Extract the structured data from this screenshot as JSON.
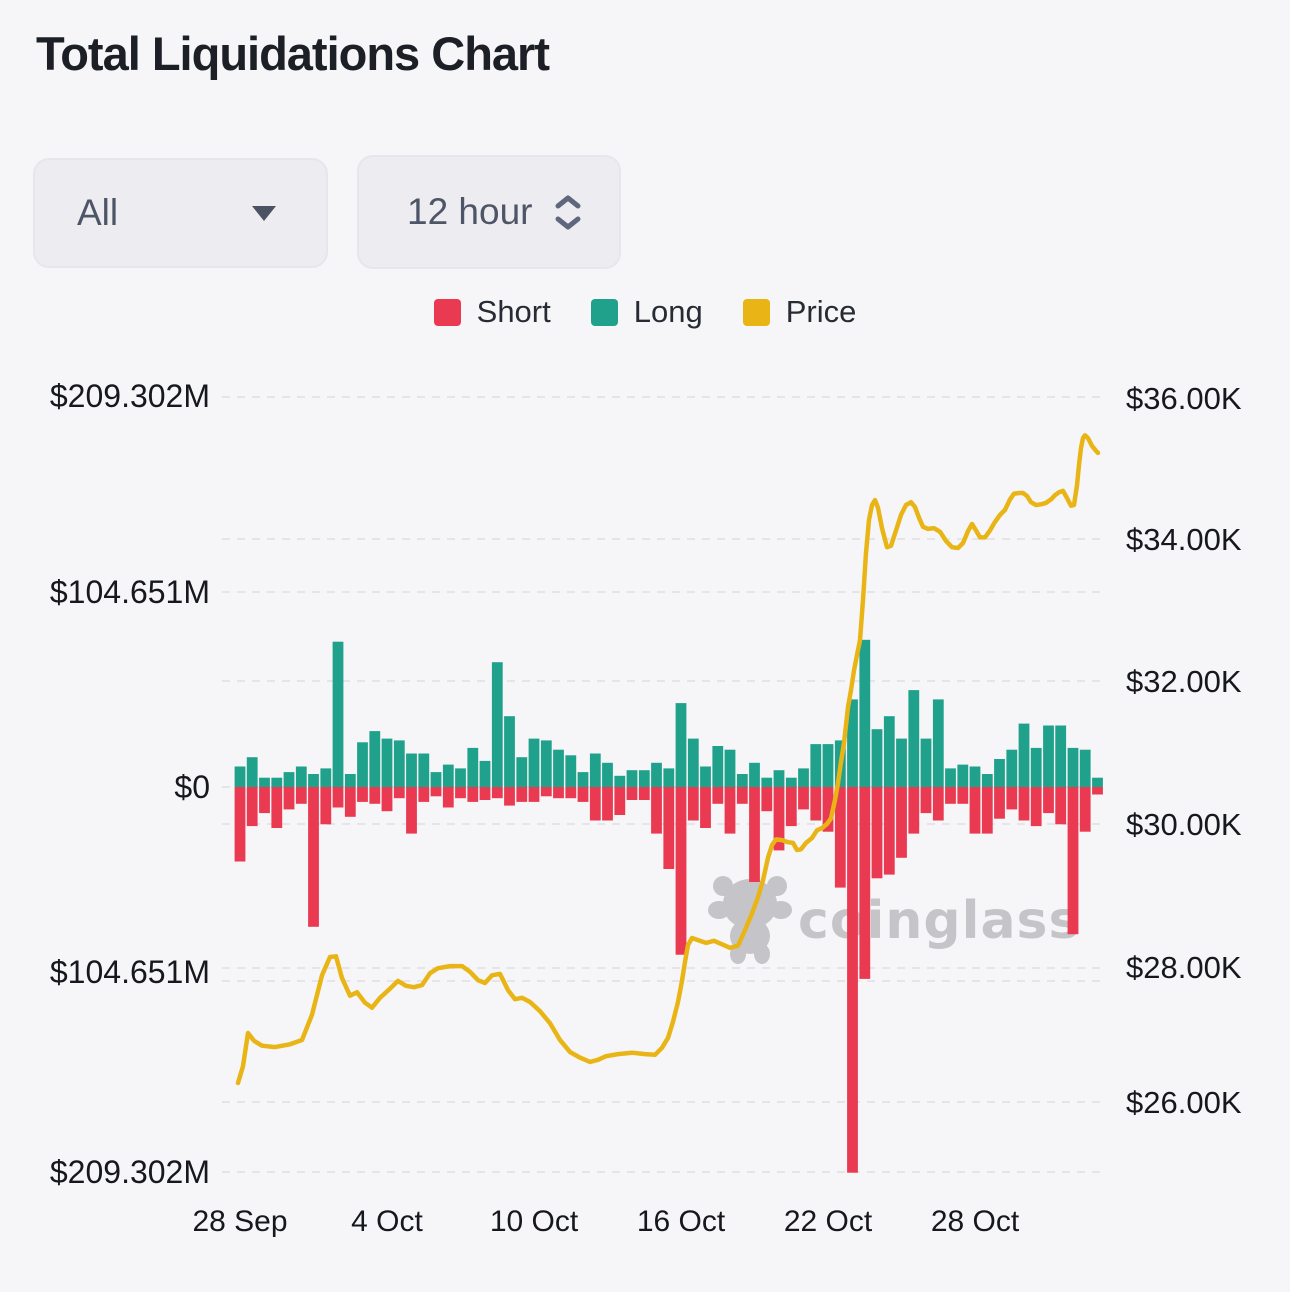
{
  "header": {
    "title": "Total Liquidations Chart"
  },
  "controls": {
    "symbol_dropdown": {
      "value": "All",
      "icon": "caret-down-icon"
    },
    "interval_dropdown": {
      "value": "12 hour",
      "icon": "up-down-spinner-icon"
    }
  },
  "legend": [
    {
      "label": "Short",
      "color": "#e93a51"
    },
    {
      "label": "Long",
      "color": "#20a18c"
    },
    {
      "label": "Price",
      "color": "#e9b516"
    }
  ],
  "watermark": {
    "text": "coinglass",
    "icon": "bull-logo-icon",
    "color": "#c5c5c9"
  },
  "chart_data": {
    "type": "bar",
    "subtype": "diverging-bars-with-price-line",
    "title": "Total Liquidations Chart",
    "interval": "12 hour",
    "grid": "dashed-horizontal",
    "x_tick_labels": [
      "28 Sep",
      "4 Oct",
      "10 Oct",
      "16 Oct",
      "22 Oct",
      "28 Oct"
    ],
    "x_tick_bar_indices": [
      0,
      12,
      24,
      36,
      48,
      60
    ],
    "left_axis": {
      "title": "Liquidations (USD)",
      "labels": [
        "$209.302M",
        "$104.651M",
        "$0",
        "$104.651M",
        "$209.302M"
      ],
      "max_M": 209.302
    },
    "right_axis": {
      "title": "BTC Price (USD)",
      "labels": [
        "$36.00K",
        "$34.00K",
        "$32.00K",
        "$30.00K",
        "$28.00K",
        "$26.00K"
      ],
      "max_K": 36,
      "min_K": 26
    },
    "series": [
      {
        "name": "Long",
        "type": "bar",
        "direction": "up",
        "unit": "$M",
        "color": "#20a18c",
        "values": [
          11,
          16,
          5,
          5,
          8,
          11,
          7,
          10,
          78,
          7,
          24,
          30,
          26,
          25,
          18,
          18,
          8,
          12,
          10,
          21,
          14,
          67,
          38,
          16,
          26,
          25,
          20,
          17,
          8,
          18,
          13,
          6,
          9,
          9,
          13,
          10,
          45,
          26,
          11,
          22,
          20,
          7,
          13,
          5,
          9,
          5,
          10,
          23,
          23,
          25,
          47,
          79,
          31,
          38,
          26,
          52,
          26,
          47,
          10,
          12,
          11,
          7,
          15,
          20,
          34,
          21,
          33,
          33,
          21,
          20,
          5
        ]
      },
      {
        "name": "Short",
        "type": "bar",
        "direction": "down",
        "unit": "$M",
        "color": "#e93a51",
        "values": [
          40,
          21,
          14,
          22,
          12,
          9,
          75,
          20,
          11,
          16,
          8,
          9,
          13,
          6,
          25,
          8,
          5,
          11,
          6,
          8,
          7,
          6,
          10,
          8,
          8,
          5,
          6,
          6,
          8,
          18,
          18,
          15,
          7,
          7,
          25,
          44,
          90,
          18,
          22,
          9,
          25,
          9,
          51,
          13,
          34,
          21,
          12,
          18,
          24,
          54,
          207,
          103,
          49,
          47,
          38,
          25,
          14,
          18,
          9,
          9,
          25,
          25,
          17,
          12,
          18,
          21,
          14,
          20,
          79,
          24,
          4
        ]
      },
      {
        "name": "Price",
        "type": "line",
        "unit": "$K",
        "color": "#e9b516",
        "points": [
          [
            238,
            26.27
          ],
          [
            243,
            26.51
          ],
          [
            248,
            26.98
          ],
          [
            254,
            26.87
          ],
          [
            262,
            26.8
          ],
          [
            275,
            26.78
          ],
          [
            290,
            26.82
          ],
          [
            302,
            26.88
          ],
          [
            312,
            27.24
          ],
          [
            322,
            27.8
          ],
          [
            330,
            28.06
          ],
          [
            336,
            28.07
          ],
          [
            342,
            27.76
          ],
          [
            350,
            27.51
          ],
          [
            357,
            27.56
          ],
          [
            365,
            27.41
          ],
          [
            372,
            27.34
          ],
          [
            380,
            27.48
          ],
          [
            390,
            27.61
          ],
          [
            398,
            27.72
          ],
          [
            406,
            27.65
          ],
          [
            414,
            27.63
          ],
          [
            422,
            27.66
          ],
          [
            430,
            27.83
          ],
          [
            438,
            27.9
          ],
          [
            450,
            27.93
          ],
          [
            462,
            27.93
          ],
          [
            470,
            27.85
          ],
          [
            478,
            27.73
          ],
          [
            485,
            27.69
          ],
          [
            492,
            27.8
          ],
          [
            500,
            27.82
          ],
          [
            508,
            27.59
          ],
          [
            515,
            27.46
          ],
          [
            522,
            27.48
          ],
          [
            530,
            27.42
          ],
          [
            540,
            27.29
          ],
          [
            550,
            27.12
          ],
          [
            560,
            26.88
          ],
          [
            570,
            26.71
          ],
          [
            580,
            26.63
          ],
          [
            590,
            26.57
          ],
          [
            598,
            26.6
          ],
          [
            606,
            26.65
          ],
          [
            618,
            26.68
          ],
          [
            632,
            26.7
          ],
          [
            645,
            26.68
          ],
          [
            655,
            26.67
          ],
          [
            662,
            26.77
          ],
          [
            668,
            26.91
          ],
          [
            673,
            27.14
          ],
          [
            678,
            27.42
          ],
          [
            682,
            27.72
          ],
          [
            685,
            27.99
          ],
          [
            688,
            28.23
          ],
          [
            692,
            28.33
          ],
          [
            698,
            28.3
          ],
          [
            706,
            28.26
          ],
          [
            714,
            28.29
          ],
          [
            722,
            28.24
          ],
          [
            730,
            28.19
          ],
          [
            738,
            28.22
          ],
          [
            745,
            28.44
          ],
          [
            752,
            28.68
          ],
          [
            758,
            28.91
          ],
          [
            763,
            29.15
          ],
          [
            768,
            29.47
          ],
          [
            772,
            29.65
          ],
          [
            776,
            29.73
          ],
          [
            782,
            29.72
          ],
          [
            788,
            29.69
          ],
          [
            793,
            29.68
          ],
          [
            797,
            29.58
          ],
          [
            801,
            29.59
          ],
          [
            806,
            29.68
          ],
          [
            812,
            29.75
          ],
          [
            817,
            29.86
          ],
          [
            822,
            29.89
          ],
          [
            827,
            29.95
          ],
          [
            831,
            30.03
          ],
          [
            835,
            30.29
          ],
          [
            838,
            30.53
          ],
          [
            841,
            30.83
          ],
          [
            844,
            31.1
          ],
          [
            848,
            31.61
          ],
          [
            851,
            31.85
          ],
          [
            854,
            32.13
          ],
          [
            857,
            32.35
          ],
          [
            860,
            32.56
          ],
          [
            863,
            33.13
          ],
          [
            866,
            33.8
          ],
          [
            869,
            34.27
          ],
          [
            872,
            34.48
          ],
          [
            875,
            34.55
          ],
          [
            878,
            34.44
          ],
          [
            882,
            34.15
          ],
          [
            887,
            33.88
          ],
          [
            891,
            33.9
          ],
          [
            896,
            34.12
          ],
          [
            901,
            34.34
          ],
          [
            906,
            34.48
          ],
          [
            911,
            34.52
          ],
          [
            915,
            34.45
          ],
          [
            919,
            34.3
          ],
          [
            923,
            34.17
          ],
          [
            928,
            34.14
          ],
          [
            934,
            34.15
          ],
          [
            940,
            34.1
          ],
          [
            946,
            33.97
          ],
          [
            952,
            33.88
          ],
          [
            958,
            33.87
          ],
          [
            963,
            33.94
          ],
          [
            968,
            34.11
          ],
          [
            972,
            34.21
          ],
          [
            976,
            34.12
          ],
          [
            980,
            34.02
          ],
          [
            985,
            34.02
          ],
          [
            990,
            34.12
          ],
          [
            995,
            34.24
          ],
          [
            1000,
            34.34
          ],
          [
            1005,
            34.41
          ],
          [
            1010,
            34.56
          ],
          [
            1014,
            34.64
          ],
          [
            1019,
            34.65
          ],
          [
            1023,
            34.65
          ],
          [
            1027,
            34.61
          ],
          [
            1031,
            34.52
          ],
          [
            1036,
            34.48
          ],
          [
            1041,
            34.49
          ],
          [
            1046,
            34.51
          ],
          [
            1051,
            34.56
          ],
          [
            1055,
            34.62
          ],
          [
            1059,
            34.66
          ],
          [
            1063,
            34.68
          ],
          [
            1067,
            34.58
          ],
          [
            1071,
            34.47
          ],
          [
            1074,
            34.48
          ],
          [
            1077,
            34.76
          ],
          [
            1079,
            35.05
          ],
          [
            1081,
            35.29
          ],
          [
            1083,
            35.43
          ],
          [
            1085,
            35.47
          ],
          [
            1088,
            35.43
          ],
          [
            1092,
            35.32
          ],
          [
            1096,
            35.25
          ],
          [
            1098,
            35.22
          ]
        ]
      }
    ]
  }
}
